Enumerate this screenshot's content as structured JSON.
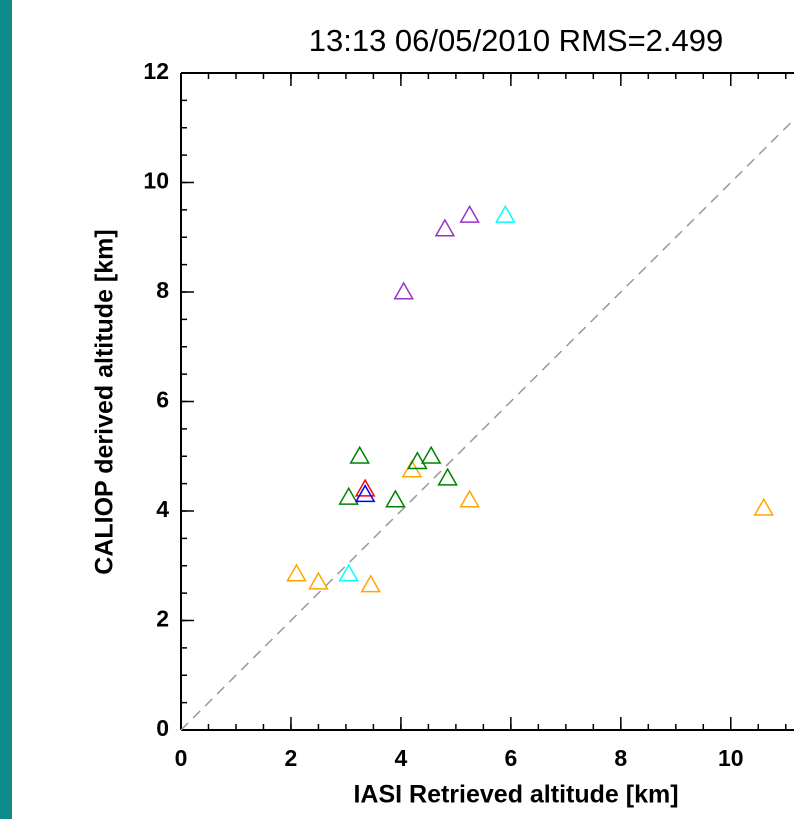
{
  "chart_data": {
    "type": "scatter",
    "title": "13:13 06/05/2010 RMS=2.499",
    "x_label": "IASI Retrieved altitude [km]",
    "y_label": "CALIOP derived altitude [km]",
    "xlim": [
      0,
      11.15
    ],
    "ylim": [
      0,
      12
    ],
    "xticks": [
      0,
      2,
      4,
      6,
      8,
      10
    ],
    "yticks": [
      0,
      2,
      4,
      6,
      8,
      10,
      12
    ],
    "series": [
      {
        "color": "#ffa500",
        "x": [
          2.1,
          2.5,
          3.45,
          4.2,
          5.25,
          10.6
        ],
        "values": [
          2.85,
          2.7,
          2.65,
          4.75,
          4.2,
          4.05
        ]
      },
      {
        "color": "#00ffff",
        "x": [
          3.05,
          5.9
        ],
        "values": [
          2.85,
          9.4
        ]
      },
      {
        "color": "#008000",
        "x": [
          3.05,
          3.25,
          3.9,
          4.3,
          4.55,
          4.85
        ],
        "values": [
          4.25,
          5.0,
          4.2,
          4.9,
          5.0,
          4.6
        ]
      },
      {
        "color": "#ff0000",
        "x": [
          3.35
        ],
        "values": [
          4.4
        ]
      },
      {
        "color": "#0000ff",
        "x": [
          3.35
        ],
        "values": [
          4.3
        ]
      },
      {
        "color": "#9932cc",
        "x": [
          4.05,
          4.8,
          5.25
        ],
        "values": [
          8.0,
          9.15,
          9.4
        ]
      }
    ]
  }
}
